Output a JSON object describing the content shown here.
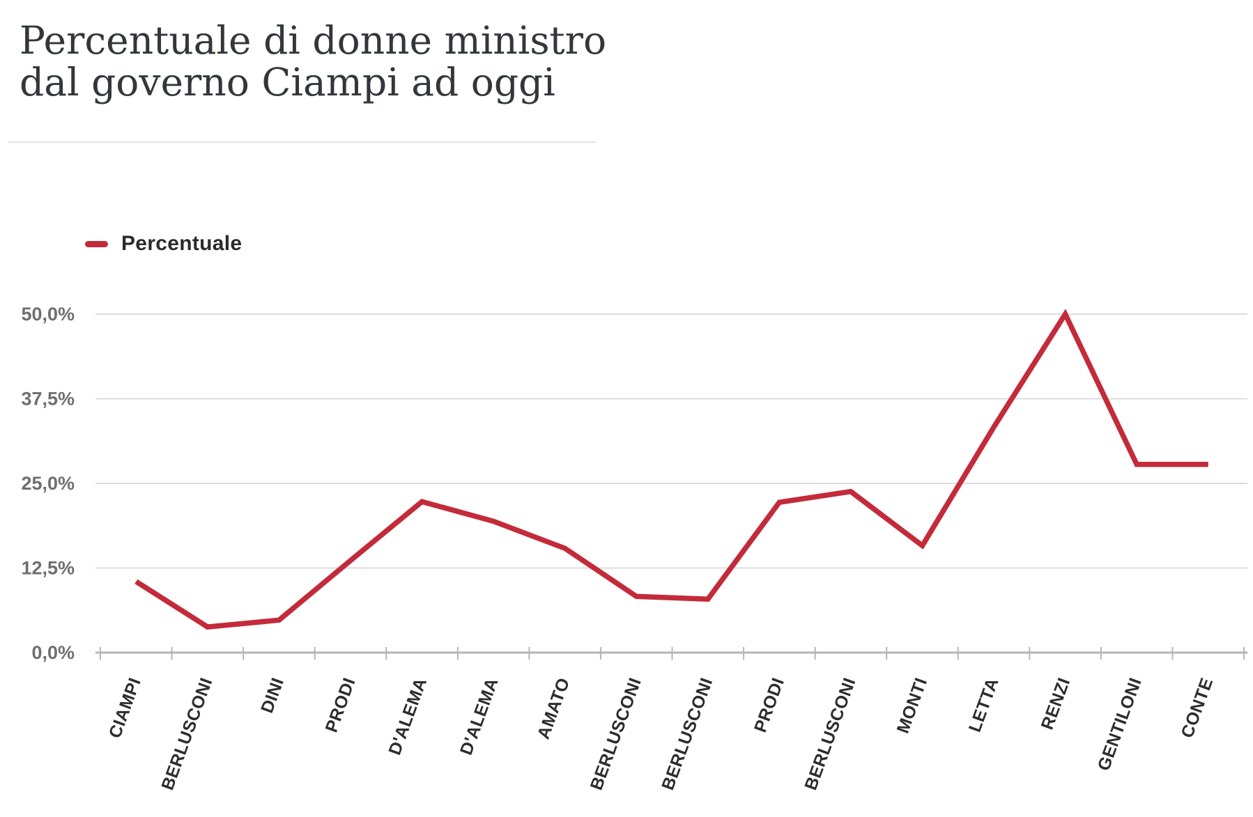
{
  "header": {
    "title_line1": "Percentuale di donne ministro",
    "title_line2": "dal governo Ciampi ad oggi"
  },
  "legend": {
    "label": "Percentuale"
  },
  "chart_data": {
    "type": "line",
    "title": "Percentuale di donne ministro dal governo Ciampi ad oggi",
    "series": [
      {
        "name": "Percentuale",
        "values": [
          10.5,
          3.8,
          4.8,
          13.6,
          22.3,
          19.4,
          15.4,
          8.3,
          7.9,
          22.2,
          23.8,
          15.8,
          33.3,
          50.0,
          27.8,
          27.8
        ]
      }
    ],
    "categories": [
      "CIAMPI",
      "BERLUSCONI",
      "DINI",
      "PRODI",
      "D'ALEMA",
      "D'ALEMA",
      "AMATO",
      "BERLUSCONI",
      "BERLUSCONI",
      "PRODI",
      "BERLUSCONI",
      "MONTI",
      "LETTA",
      "RENZI",
      "GENTILONI",
      "CONTE"
    ],
    "xlabel": "",
    "ylabel": "",
    "ylim": [
      0,
      50
    ],
    "y_ticks": [
      {
        "value": 0,
        "label": "0,0%"
      },
      {
        "value": 12.5,
        "label": "12,5%"
      },
      {
        "value": 25,
        "label": "25,0%"
      },
      {
        "value": 37.5,
        "label": "37,5%"
      },
      {
        "value": 50,
        "label": "50,0%"
      }
    ],
    "grid": true,
    "legend_position": "top-left",
    "line_color": "#c32b3a"
  },
  "colors": {
    "accent_red": "#c32b3a",
    "title_text": "#33373c",
    "y_label_text": "#6f6f6f",
    "x_label_text": "#2d2d2d",
    "gridline": "#dcdcdc",
    "axis": "#b5b5b5",
    "background": "#ffffff"
  }
}
